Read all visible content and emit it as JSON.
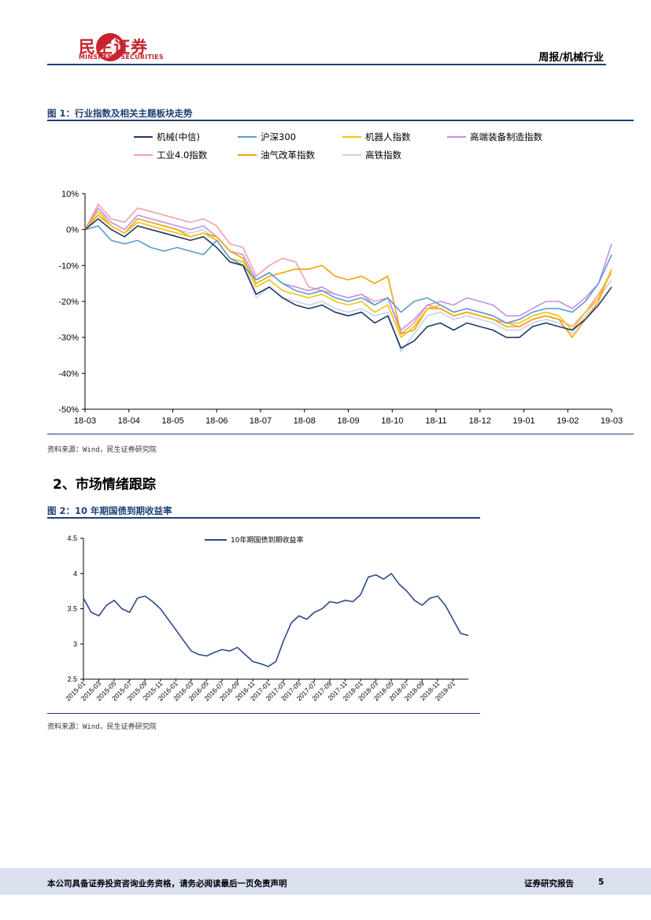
{
  "header": {
    "logo_cn": "民生证券",
    "logo_en": "MINSHENG SECURITIES",
    "report_type": "周报/机械行业",
    "colors": {
      "brand": "#c7242f",
      "navy": "#1f3f73"
    }
  },
  "figure1": {
    "title": "图 1：行业指数及相关主题板块走势",
    "source": "资料来源：Wind，民生证券研究院",
    "chart_data": {
      "type": "line",
      "ylim": [
        -50,
        10
      ],
      "yticks": [
        "10%",
        "0%",
        "-10%",
        "-20%",
        "-30%",
        "-40%",
        "-50%"
      ],
      "xticks": [
        "18-03",
        "18-04",
        "18-05",
        "18-06",
        "18-07",
        "18-08",
        "18-09",
        "18-10",
        "18-11",
        "18-12",
        "19-01",
        "19-02",
        "19-03"
      ],
      "x": [
        0,
        0.3,
        0.6,
        0.9,
        1.2,
        1.5,
        1.8,
        2.1,
        2.4,
        2.7,
        3.0,
        3.3,
        3.6,
        3.9,
        4.2,
        4.5,
        4.8,
        5.1,
        5.4,
        5.7,
        6.0,
        6.3,
        6.6,
        6.9,
        7.2,
        7.5,
        7.8,
        8.1,
        8.4,
        8.7,
        9.0,
        9.3,
        9.6,
        9.9,
        10.2,
        10.5,
        10.8,
        11.1,
        11.4,
        11.7,
        12.0
      ],
      "series": [
        {
          "name": "机械(中信)",
          "color": "#1f3864",
          "values": [
            0,
            3,
            0,
            -2,
            1,
            0,
            -1,
            -2,
            -3,
            -2,
            -5,
            -9,
            -10,
            -18,
            -16,
            -19,
            -21,
            -22,
            -21,
            -23,
            -24,
            -23,
            -26,
            -24,
            -33,
            -31,
            -27,
            -26,
            -28,
            -26,
            -27,
            -28,
            -30,
            -30,
            -27,
            -26,
            -27,
            -28,
            -25,
            -21,
            -16
          ]
        },
        {
          "name": "沪深300",
          "color": "#5b9bd5",
          "values": [
            0,
            1,
            -3,
            -4,
            -3,
            -5,
            -6,
            -5,
            -6,
            -7,
            -3,
            -8,
            -10,
            -14,
            -12,
            -15,
            -17,
            -18,
            -17,
            -19,
            -20,
            -19,
            -21,
            -19,
            -23,
            -20,
            -19,
            -21,
            -23,
            -22,
            -23,
            -24,
            -26,
            -25,
            -23,
            -22,
            -22,
            -23,
            -20,
            -15,
            -7
          ]
        },
        {
          "name": "机器人指数",
          "color": "#f4c20d",
          "values": [
            0,
            5,
            1,
            -1,
            2,
            1,
            0,
            -1,
            -2,
            -1,
            -3,
            -8,
            -9,
            -16,
            -14,
            -17,
            -18,
            -19,
            -18,
            -20,
            -21,
            -20,
            -23,
            -21,
            -30,
            -27,
            -22,
            -21,
            -23,
            -22,
            -23,
            -24,
            -26,
            -26,
            -24,
            -23,
            -24,
            -28,
            -23,
            -19,
            -11
          ]
        },
        {
          "name": "高端装备制造指数",
          "color": "#c190e8",
          "values": [
            0,
            6,
            2,
            0,
            4,
            3,
            2,
            1,
            0,
            1,
            -2,
            -6,
            -7,
            -14,
            -12,
            -15,
            -16,
            -17,
            -16,
            -18,
            -19,
            -18,
            -21,
            -19,
            -28,
            -25,
            -21,
            -20,
            -21,
            -19,
            -20,
            -21,
            -24,
            -24,
            -22,
            -20,
            -20,
            -22,
            -19,
            -15,
            -4
          ]
        },
        {
          "name": "工业4.0指数",
          "color": "#f4a0a8",
          "values": [
            0,
            7,
            3,
            2,
            6,
            5,
            4,
            3,
            2,
            3,
            1,
            -4,
            -5,
            -13,
            -10,
            -8,
            -9,
            -16,
            -17,
            -18,
            -19,
            -18,
            -20,
            -19,
            -29,
            -26,
            -21,
            -22,
            -24,
            -23,
            -24,
            -25,
            -26,
            -27,
            -25,
            -24,
            -25,
            -27,
            -23,
            -18,
            -12
          ]
        },
        {
          "name": "油气改革指数",
          "color": "#f5a300",
          "values": [
            0,
            4,
            1,
            -1,
            3,
            2,
            1,
            0,
            -2,
            -1,
            -2,
            -6,
            -8,
            -15,
            -13,
            -12,
            -11,
            -11,
            -10,
            -13,
            -14,
            -13,
            -15,
            -13,
            -29,
            -28,
            -22,
            -22,
            -24,
            -23,
            -24,
            -25,
            -27,
            -27,
            -25,
            -24,
            -25,
            -30,
            -25,
            -20,
            -11
          ]
        },
        {
          "name": "高铁指数",
          "color": "#c6d4ec",
          "values": [
            0,
            6,
            1,
            -1,
            3,
            2,
            1,
            0,
            -1,
            0,
            -3,
            -8,
            -10,
            -19,
            -16,
            -19,
            -20,
            -21,
            -20,
            -22,
            -23,
            -22,
            -24,
            -23,
            -34,
            -29,
            -24,
            -23,
            -25,
            -24,
            -25,
            -26,
            -28,
            -28,
            -26,
            -25,
            -26,
            -29,
            -24,
            -19,
            -14
          ]
        }
      ]
    }
  },
  "section2": {
    "title": "2、市场情绪跟踪"
  },
  "figure2": {
    "title": "图 2：10 年期国债到期收益率",
    "source": "资料来源：Wind，民生证券研究院",
    "chart_data": {
      "type": "line",
      "ylim": [
        2.5,
        4.5
      ],
      "yticks": [
        "4.5",
        "4",
        "3.5",
        "3",
        "2.5"
      ],
      "xticks": [
        "2015-01",
        "2015-03",
        "2015-05",
        "2015-07",
        "2015-09",
        "2015-11",
        "2016-01",
        "2016-03",
        "2016-05",
        "2016-07",
        "2016-09",
        "2016-11",
        "2017-01",
        "2017-03",
        "2017-05",
        "2017-07",
        "2017-09",
        "2017-11",
        "2018-01",
        "2018-03",
        "2018-05",
        "2018-07",
        "2018-09",
        "2018-11",
        "2019-01"
      ],
      "x": [
        0,
        0.5,
        1,
        1.5,
        2,
        2.5,
        3,
        3.5,
        4,
        4.5,
        5,
        5.5,
        6,
        6.5,
        7,
        7.5,
        8,
        8.5,
        9,
        9.5,
        10,
        10.5,
        11,
        11.5,
        12,
        12.5,
        13,
        13.5,
        14,
        14.5,
        15,
        15.5,
        16,
        16.5,
        17,
        17.5,
        18,
        18.5,
        19,
        19.5,
        20,
        20.5,
        21,
        21.5,
        22,
        22.5,
        23,
        23.5,
        24,
        24.5,
        25
      ],
      "series": [
        {
          "name": "10年期国债到期收益率",
          "color": "#2e4a8b",
          "values": [
            3.65,
            3.45,
            3.4,
            3.55,
            3.62,
            3.5,
            3.45,
            3.65,
            3.68,
            3.6,
            3.5,
            3.35,
            3.2,
            3.05,
            2.9,
            2.85,
            2.83,
            2.88,
            2.92,
            2.9,
            2.95,
            2.85,
            2.75,
            2.72,
            2.68,
            2.75,
            3.05,
            3.3,
            3.4,
            3.35,
            3.45,
            3.5,
            3.6,
            3.58,
            3.62,
            3.6,
            3.7,
            3.95,
            3.98,
            3.92,
            4.0,
            3.85,
            3.75,
            3.62,
            3.55,
            3.65,
            3.68,
            3.55,
            3.35,
            3.15,
            3.12
          ]
        }
      ]
    }
  },
  "footer": {
    "disclaimer": "本公司具备证券投资咨询业务资格，请务必阅读最后一页免责声明",
    "report_label": "证券研究报告",
    "page_number": "5"
  }
}
